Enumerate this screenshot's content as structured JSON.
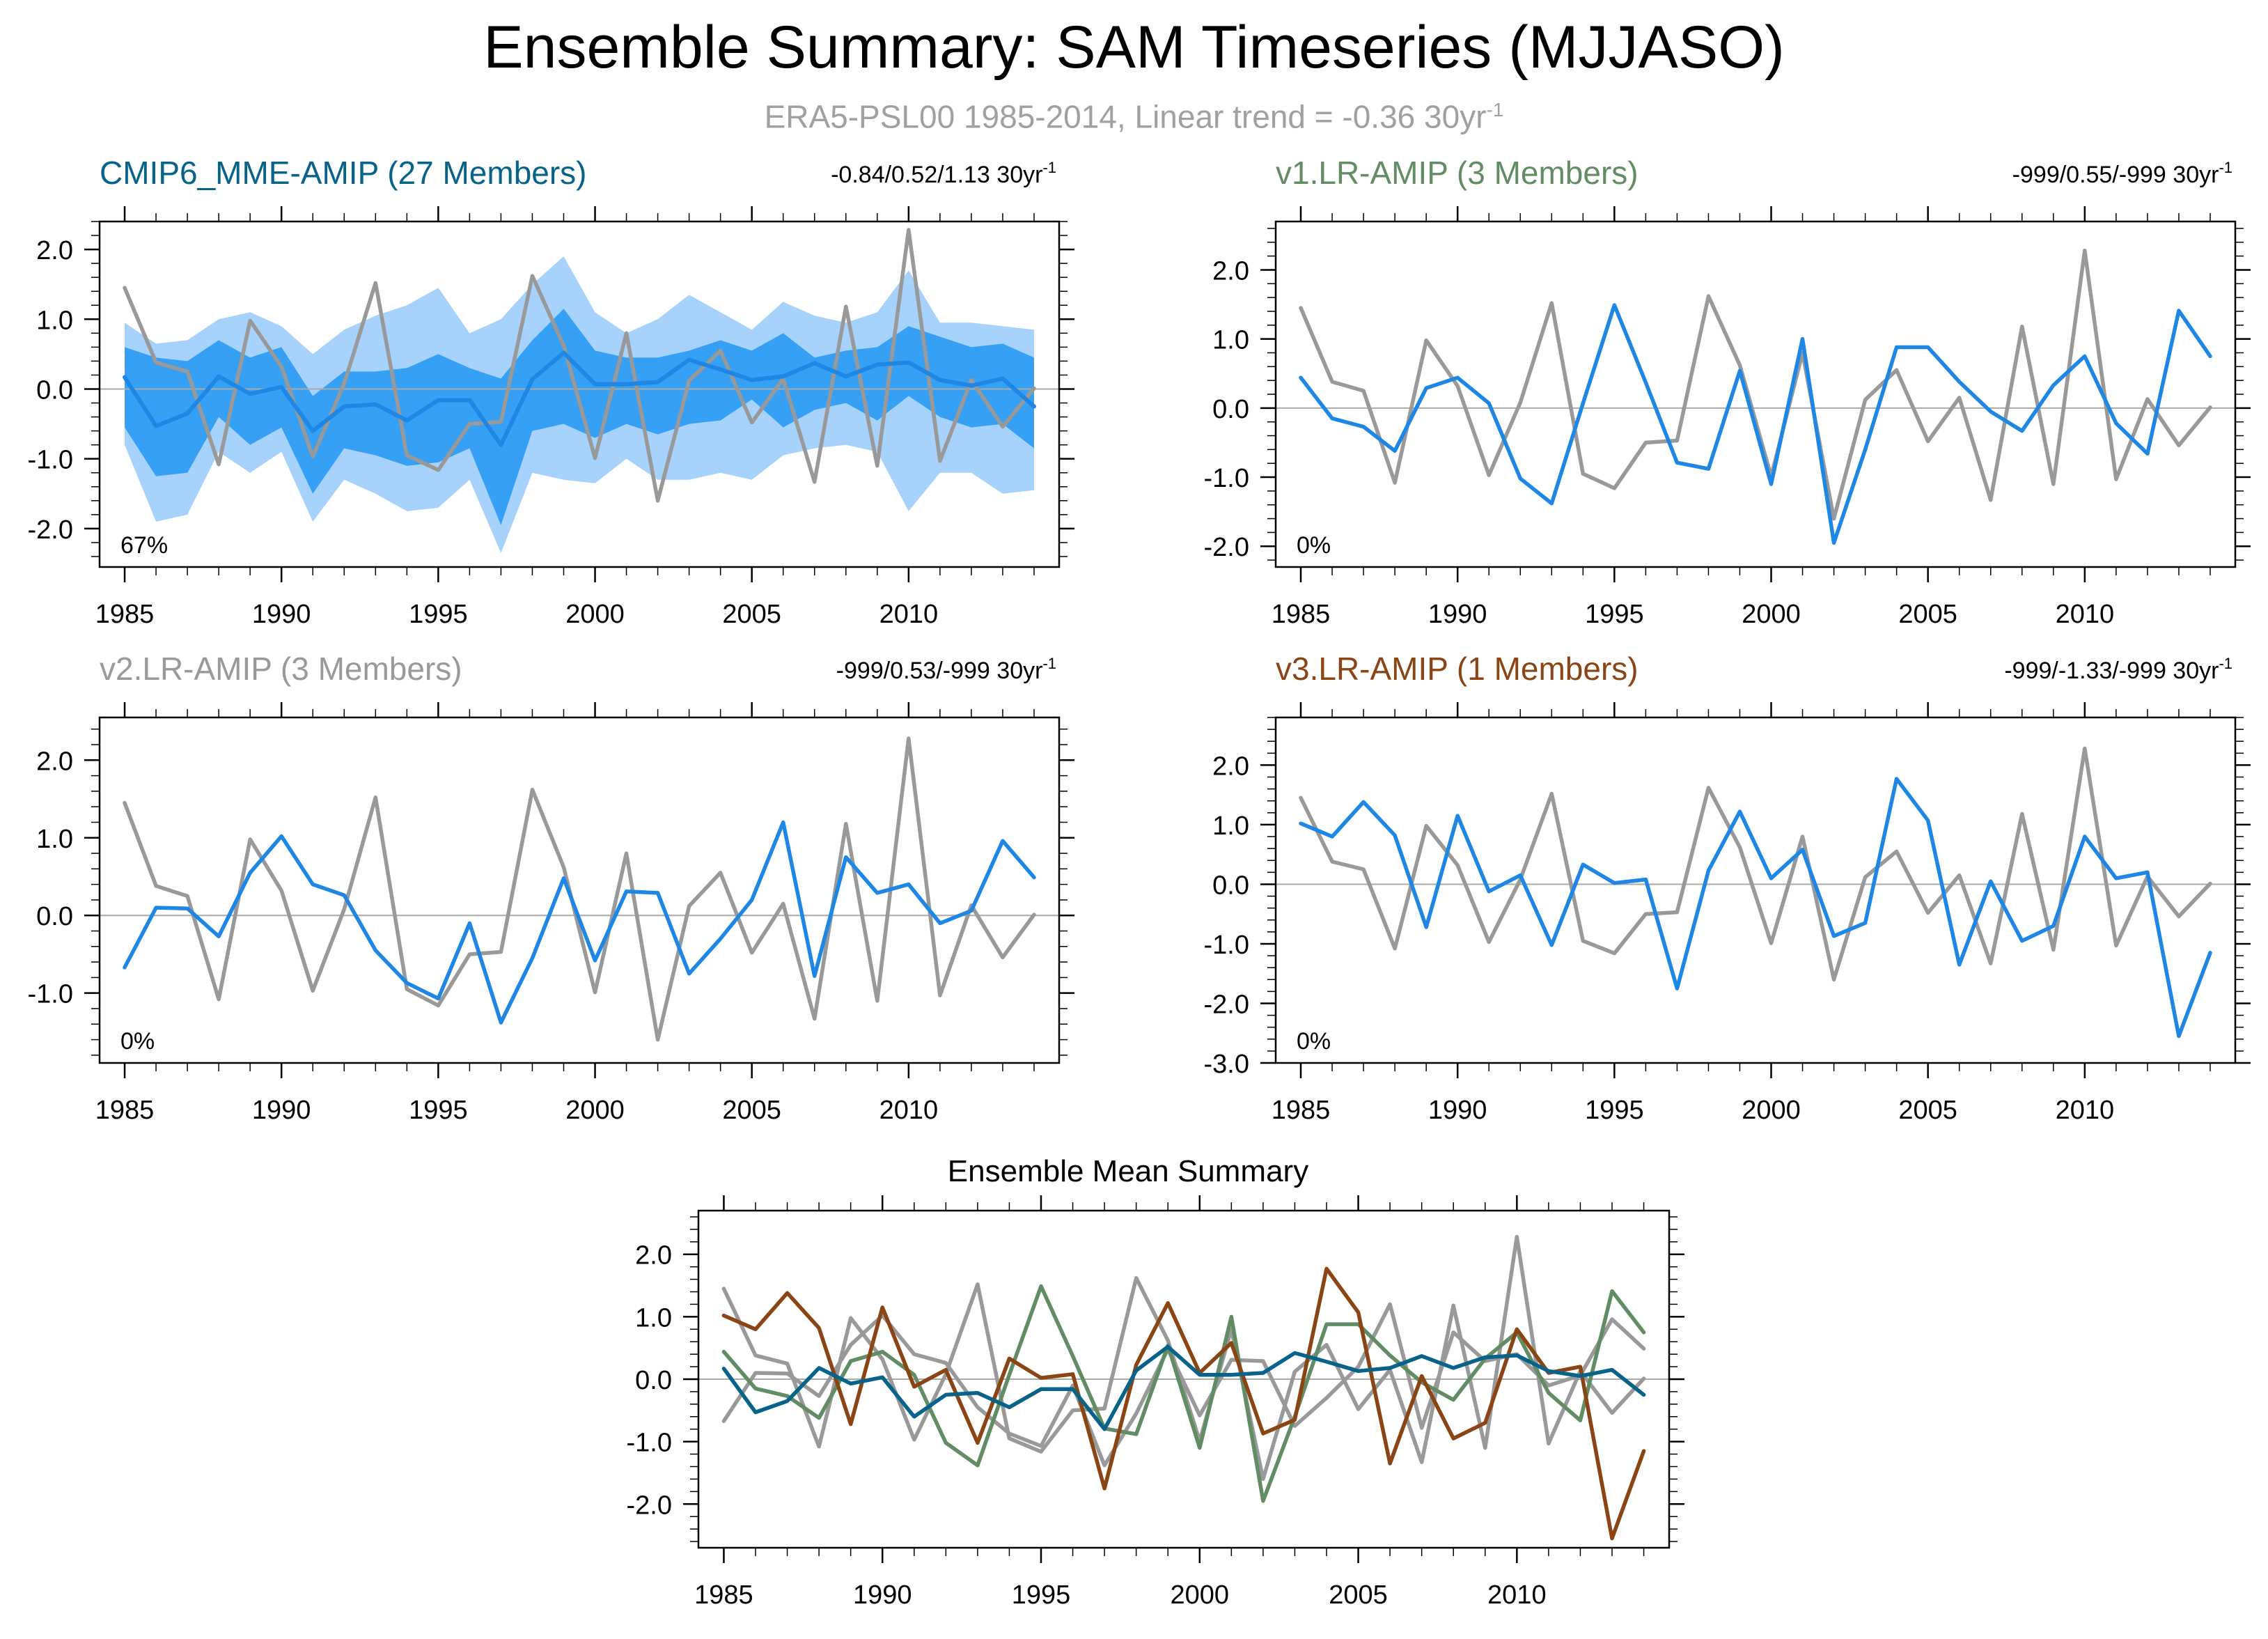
{
  "figure": {
    "title": "Ensemble Summary: SAM Timeseries (MJJASO)",
    "subtitle": "ERA5-PSL00 1985-2014, Linear trend = -0.36 30yr",
    "subtitle_sup": "-1"
  },
  "colors": {
    "obs": "#999999",
    "model": "#1e87e5",
    "band_outer": "#a6d2fb",
    "band_inner": "#36a0f5",
    "mme_mean": "#07638a",
    "v1": "#628c63",
    "v2": "#999999",
    "v3": "#8b4515",
    "axis": "#000000",
    "zero_line": "#aaaaaa"
  },
  "chart_data": [
    {
      "id": "mme",
      "type": "line",
      "title": "CMIP6_MME-AMIP (27 Members)",
      "title_color": "#07638a",
      "trend_text": "-0.84/0.52/1.13 30yr",
      "trend_sup": "-1",
      "percent_label": "67%",
      "x": [
        1985,
        1986,
        1987,
        1988,
        1989,
        1990,
        1991,
        1992,
        1993,
        1994,
        1995,
        1996,
        1997,
        1998,
        1999,
        2000,
        2001,
        2002,
        2003,
        2004,
        2005,
        2006,
        2007,
        2008,
        2009,
        2010,
        2011,
        2012,
        2013,
        2014
      ],
      "ylim": [
        -2.55,
        2.4
      ],
      "yticks": [
        -2.0,
        -1.0,
        0.0,
        1.0,
        2.0
      ],
      "ytick_labels": [
        "-2.0",
        "-1.0",
        "0.0",
        "1.0",
        "2.0"
      ],
      "xticks": [
        1985,
        1990,
        1995,
        2000,
        2005,
        2010
      ],
      "xtick_labels": [
        "1985",
        "1990",
        "1995",
        "2000",
        "2005",
        "2010"
      ],
      "bands": [
        {
          "name": "outer",
          "lower": [
            -0.8,
            -1.9,
            -1.8,
            -0.9,
            -1.2,
            -0.9,
            -1.9,
            -1.3,
            -1.5,
            -1.75,
            -1.7,
            -1.3,
            -2.35,
            -1.2,
            -1.3,
            -1.35,
            -1.0,
            -1.3,
            -1.3,
            -1.2,
            -1.3,
            -0.95,
            -0.85,
            -0.8,
            -0.9,
            -1.75,
            -1.2,
            -1.2,
            -1.5,
            -1.45
          ],
          "upper": [
            0.95,
            0.65,
            0.7,
            1.0,
            1.1,
            0.9,
            0.5,
            0.85,
            1.05,
            1.2,
            1.45,
            0.8,
            1.0,
            1.5,
            1.9,
            1.1,
            0.8,
            1.0,
            1.35,
            1.1,
            0.85,
            1.25,
            1.05,
            0.95,
            1.1,
            1.7,
            0.95,
            0.95,
            0.9,
            0.85
          ]
        },
        {
          "name": "inner",
          "lower": [
            -0.55,
            -1.25,
            -1.2,
            -0.4,
            -0.8,
            -0.55,
            -1.5,
            -0.85,
            -0.95,
            -1.1,
            -1.05,
            -0.85,
            -1.95,
            -0.6,
            -0.5,
            -0.7,
            -0.5,
            -0.65,
            -0.5,
            -0.45,
            -0.15,
            -0.55,
            -0.3,
            -0.2,
            -0.45,
            -0.1,
            -0.4,
            -0.55,
            -0.5,
            -0.85
          ],
          "upper": [
            0.6,
            0.45,
            0.4,
            0.7,
            0.45,
            0.6,
            -0.1,
            0.25,
            0.25,
            0.3,
            0.5,
            0.3,
            0.15,
            0.7,
            1.15,
            0.55,
            0.45,
            0.45,
            0.55,
            0.7,
            0.55,
            0.8,
            0.45,
            0.55,
            0.6,
            0.9,
            0.75,
            0.6,
            0.65,
            0.45
          ]
        }
      ],
      "series": [
        {
          "name": "ERA5-PSL00",
          "color": "#999999",
          "values": [
            1.45,
            0.38,
            0.25,
            -1.08,
            0.98,
            0.32,
            -0.97,
            0.08,
            1.52,
            -0.95,
            -1.16,
            -0.5,
            -0.47,
            1.62,
            0.62,
            -0.99,
            0.8,
            -1.6,
            0.12,
            0.55,
            -0.48,
            0.15,
            -1.33,
            1.18,
            -1.1,
            2.28,
            -1.03,
            0.13,
            -0.54,
            0.01
          ]
        },
        {
          "name": "CMIP6_MME-AMIP",
          "color": "#1e87e5",
          "values": [
            0.17,
            -0.53,
            -0.35,
            0.18,
            -0.07,
            0.03,
            -0.6,
            -0.25,
            -0.22,
            -0.45,
            -0.16,
            -0.16,
            -0.8,
            0.14,
            0.52,
            0.07,
            0.07,
            0.1,
            0.42,
            0.28,
            0.13,
            0.18,
            0.37,
            0.18,
            0.35,
            0.38,
            0.13,
            0.05,
            0.15,
            -0.25
          ]
        }
      ]
    },
    {
      "id": "v1",
      "type": "line",
      "title": "v1.LR-AMIP (3 Members)",
      "title_color": "#628c63",
      "trend_text": "-999/0.55/-999 30yr",
      "trend_sup": "-1",
      "percent_label": "0%",
      "x": [
        1985,
        1986,
        1987,
        1988,
        1989,
        1990,
        1991,
        1992,
        1993,
        1994,
        1995,
        1996,
        1997,
        1998,
        1999,
        2000,
        2001,
        2002,
        2003,
        2004,
        2005,
        2006,
        2007,
        2008,
        2009,
        2010,
        2011,
        2012,
        2013,
        2014
      ],
      "ylim": [
        -2.3,
        2.7
      ],
      "yticks": [
        -2.0,
        -1.0,
        0.0,
        1.0,
        2.0
      ],
      "ytick_labels": [
        "-2.0",
        "-1.0",
        "0.0",
        "1.0",
        "2.0"
      ],
      "xticks": [
        1985,
        1990,
        1995,
        2000,
        2005,
        2010
      ],
      "xtick_labels": [
        "1985",
        "1990",
        "1995",
        "2000",
        "2005",
        "2010"
      ],
      "series": [
        {
          "name": "ERA5-PSL00",
          "color": "#999999",
          "values": [
            1.45,
            0.38,
            0.25,
            -1.08,
            0.98,
            0.32,
            -0.97,
            0.08,
            1.52,
            -0.95,
            -1.16,
            -0.5,
            -0.47,
            1.62,
            0.62,
            -0.99,
            0.8,
            -1.6,
            0.12,
            0.55,
            -0.48,
            0.15,
            -1.33,
            1.18,
            -1.1,
            2.28,
            -1.03,
            0.13,
            -0.54,
            0.01
          ]
        },
        {
          "name": "v1.LR-AMIP",
          "color": "#1e87e5",
          "values": [
            0.44,
            -0.15,
            -0.27,
            -0.62,
            0.29,
            0.44,
            0.07,
            -1.02,
            -1.38,
            0.07,
            1.49,
            0.37,
            -0.79,
            -0.88,
            0.54,
            -1.1,
            1.0,
            -1.95,
            -0.6,
            0.88,
            0.88,
            0.38,
            -0.05,
            -0.33,
            0.33,
            0.75,
            -0.22,
            -0.66,
            1.41,
            0.75
          ]
        }
      ]
    },
    {
      "id": "v2",
      "type": "line",
      "title": "v2.LR-AMIP (3 Members)",
      "title_color": "#999999",
      "trend_text": "-999/0.53/-999 30yr",
      "trend_sup": "-1",
      "percent_label": "0%",
      "x": [
        1985,
        1986,
        1987,
        1988,
        1989,
        1990,
        1991,
        1992,
        1993,
        1994,
        1995,
        1996,
        1997,
        1998,
        1999,
        2000,
        2001,
        2002,
        2003,
        2004,
        2005,
        2006,
        2007,
        2008,
        2009,
        2010,
        2011,
        2012,
        2013,
        2014
      ],
      "ylim": [
        -1.9,
        2.55
      ],
      "yticks": [
        -1.0,
        0.0,
        1.0,
        2.0
      ],
      "ytick_labels": [
        "-1.0",
        "0.0",
        "1.0",
        "2.0"
      ],
      "xticks": [
        1985,
        1990,
        1995,
        2000,
        2005,
        2010
      ],
      "xtick_labels": [
        "1985",
        "1990",
        "1995",
        "2000",
        "2005",
        "2010"
      ],
      "series": [
        {
          "name": "ERA5-PSL00",
          "color": "#999999",
          "values": [
            1.45,
            0.38,
            0.25,
            -1.08,
            0.98,
            0.32,
            -0.97,
            0.08,
            1.52,
            -0.95,
            -1.16,
            -0.5,
            -0.47,
            1.62,
            0.62,
            -0.99,
            0.8,
            -1.6,
            0.12,
            0.55,
            -0.48,
            0.15,
            -1.33,
            1.18,
            -1.1,
            2.28,
            -1.03,
            0.13,
            -0.54,
            0.01
          ]
        },
        {
          "name": "v2.LR-AMIP",
          "color": "#1e87e5",
          "values": [
            -0.67,
            0.1,
            0.09,
            -0.27,
            0.55,
            1.02,
            0.4,
            0.26,
            -0.45,
            -0.87,
            -1.07,
            -0.1,
            -1.38,
            -0.55,
            0.48,
            -0.58,
            0.31,
            0.29,
            -0.75,
            -0.3,
            0.2,
            1.2,
            -0.78,
            0.75,
            0.29,
            0.4,
            -0.1,
            0.06,
            0.96,
            0.49
          ]
        }
      ]
    },
    {
      "id": "v3",
      "type": "line",
      "title": "v3.LR-AMIP (1 Members)",
      "title_color": "#8b4515",
      "trend_text": "-999/-1.33/-999 30yr",
      "trend_sup": "-1",
      "percent_label": "0%",
      "x": [
        1985,
        1986,
        1987,
        1988,
        1989,
        1990,
        1991,
        1992,
        1993,
        1994,
        1995,
        1996,
        1997,
        1998,
        1999,
        2000,
        2001,
        2002,
        2003,
        2004,
        2005,
        2006,
        2007,
        2008,
        2009,
        2010,
        2011,
        2012,
        2013,
        2014
      ],
      "ylim": [
        -3.0,
        2.8
      ],
      "yticks": [
        -3.0,
        -2.0,
        -1.0,
        0.0,
        1.0,
        2.0
      ],
      "ytick_labels": [
        "-3.0",
        "-2.0",
        "-1.0",
        "0.0",
        "1.0",
        "2.0"
      ],
      "xticks": [
        1985,
        1990,
        1995,
        2000,
        2005,
        2010
      ],
      "xtick_labels": [
        "1985",
        "1990",
        "1995",
        "2000",
        "2005",
        "2010"
      ],
      "series": [
        {
          "name": "ERA5-PSL00",
          "color": "#999999",
          "values": [
            1.45,
            0.38,
            0.25,
            -1.08,
            0.98,
            0.32,
            -0.97,
            0.08,
            1.52,
            -0.95,
            -1.16,
            -0.5,
            -0.47,
            1.62,
            0.62,
            -0.99,
            0.8,
            -1.6,
            0.12,
            0.55,
            -0.48,
            0.15,
            -1.33,
            1.18,
            -1.1,
            2.28,
            -1.03,
            0.13,
            -0.54,
            0.01
          ]
        },
        {
          "name": "v3.LR-AMIP",
          "color": "#1e87e5",
          "values": [
            1.02,
            0.8,
            1.38,
            0.82,
            -0.72,
            1.15,
            -0.12,
            0.15,
            -1.02,
            0.33,
            0.02,
            0.08,
            -1.75,
            0.23,
            1.22,
            0.1,
            0.58,
            -0.87,
            -0.65,
            1.77,
            1.07,
            -1.35,
            0.05,
            -0.95,
            -0.7,
            0.8,
            0.1,
            0.2,
            -2.55,
            -1.15
          ]
        }
      ]
    },
    {
      "id": "mean",
      "type": "line",
      "title": "Ensemble Mean Summary",
      "title_color": "#000000",
      "x": [
        1985,
        1986,
        1987,
        1988,
        1989,
        1990,
        1991,
        1992,
        1993,
        1994,
        1995,
        1996,
        1997,
        1998,
        1999,
        2000,
        2001,
        2002,
        2003,
        2004,
        2005,
        2006,
        2007,
        2008,
        2009,
        2010,
        2011,
        2012,
        2013,
        2014
      ],
      "ylim": [
        -2.7,
        2.7
      ],
      "yticks": [
        -2.0,
        -1.0,
        0.0,
        1.0,
        2.0
      ],
      "ytick_labels": [
        "-2.0",
        "-1.0",
        "0.0",
        "1.0",
        "2.0"
      ],
      "xticks": [
        1985,
        1990,
        1995,
        2000,
        2005,
        2010
      ],
      "xtick_labels": [
        "1985",
        "1990",
        "1995",
        "2000",
        "2005",
        "2010"
      ],
      "series": [
        {
          "name": "ERA5-PSL00",
          "color": "#999999",
          "values": [
            1.45,
            0.38,
            0.25,
            -1.08,
            0.98,
            0.32,
            -0.97,
            0.08,
            1.52,
            -0.95,
            -1.16,
            -0.5,
            -0.47,
            1.62,
            0.62,
            -0.99,
            0.8,
            -1.6,
            0.12,
            0.55,
            -0.48,
            0.15,
            -1.33,
            1.18,
            -1.1,
            2.28,
            -1.03,
            0.13,
            -0.54,
            0.01
          ]
        },
        {
          "name": "v2.LR-AMIP",
          "color": "#999999",
          "values": [
            -0.67,
            0.1,
            0.09,
            -0.27,
            0.55,
            1.02,
            0.4,
            0.26,
            -0.45,
            -0.87,
            -1.07,
            -0.1,
            -1.38,
            -0.55,
            0.48,
            -0.58,
            0.31,
            0.29,
            -0.75,
            -0.3,
            0.2,
            1.2,
            -0.78,
            0.75,
            0.29,
            0.4,
            -0.1,
            0.06,
            0.96,
            0.49
          ]
        },
        {
          "name": "v1.LR-AMIP",
          "color": "#628c63",
          "values": [
            0.44,
            -0.15,
            -0.27,
            -0.62,
            0.29,
            0.44,
            0.07,
            -1.02,
            -1.38,
            0.07,
            1.49,
            0.37,
            -0.79,
            -0.88,
            0.54,
            -1.1,
            1.0,
            -1.95,
            -0.6,
            0.88,
            0.88,
            0.38,
            -0.05,
            -0.33,
            0.33,
            0.75,
            -0.22,
            -0.66,
            1.41,
            0.75
          ]
        },
        {
          "name": "v3.LR-AMIP",
          "color": "#8b4515",
          "values": [
            1.02,
            0.8,
            1.38,
            0.82,
            -0.72,
            1.15,
            -0.12,
            0.15,
            -1.02,
            0.33,
            0.02,
            0.08,
            -1.75,
            0.23,
            1.22,
            0.1,
            0.58,
            -0.87,
            -0.65,
            1.77,
            1.07,
            -1.35,
            0.05,
            -0.95,
            -0.7,
            0.8,
            0.1,
            0.2,
            -2.55,
            -1.15
          ]
        },
        {
          "name": "CMIP6_MME-AMIP",
          "color": "#07638a",
          "values": [
            0.17,
            -0.53,
            -0.35,
            0.18,
            -0.07,
            0.03,
            -0.6,
            -0.25,
            -0.22,
            -0.45,
            -0.16,
            -0.16,
            -0.8,
            0.14,
            0.52,
            0.07,
            0.07,
            0.1,
            0.42,
            0.28,
            0.13,
            0.18,
            0.37,
            0.18,
            0.35,
            0.38,
            0.13,
            0.05,
            0.15,
            -0.25
          ]
        }
      ]
    }
  ]
}
